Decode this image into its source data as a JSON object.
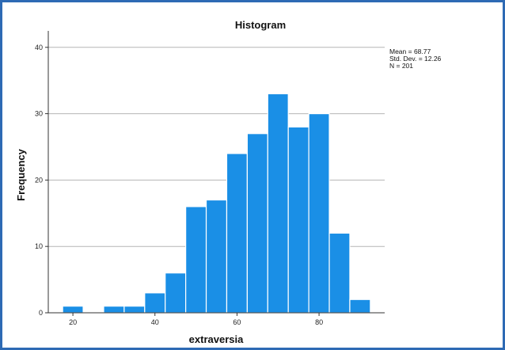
{
  "chart_data": {
    "type": "bar",
    "title": "Histogram",
    "xlabel": "extraversia",
    "ylabel": "Frequency",
    "bin_width": 5,
    "bins": [
      {
        "start": 17.5,
        "end": 22.5,
        "count": 1
      },
      {
        "start": 22.5,
        "end": 27.5,
        "count": 0
      },
      {
        "start": 27.5,
        "end": 32.5,
        "count": 1
      },
      {
        "start": 32.5,
        "end": 37.5,
        "count": 1
      },
      {
        "start": 37.5,
        "end": 42.5,
        "count": 3
      },
      {
        "start": 42.5,
        "end": 47.5,
        "count": 6
      },
      {
        "start": 47.5,
        "end": 52.5,
        "count": 16
      },
      {
        "start": 52.5,
        "end": 57.5,
        "count": 17
      },
      {
        "start": 57.5,
        "end": 62.5,
        "count": 24
      },
      {
        "start": 62.5,
        "end": 67.5,
        "count": 27
      },
      {
        "start": 67.5,
        "end": 72.5,
        "count": 33
      },
      {
        "start": 72.5,
        "end": 77.5,
        "count": 28
      },
      {
        "start": 77.5,
        "end": 82.5,
        "count": 30
      },
      {
        "start": 82.5,
        "end": 87.5,
        "count": 12
      },
      {
        "start": 87.5,
        "end": 92.5,
        "count": 2
      }
    ],
    "xlim": [
      14,
      96
    ],
    "ylim": [
      0,
      42
    ],
    "xticks": [
      20,
      40,
      60,
      80
    ],
    "yticks": [
      0,
      10,
      20,
      30,
      40
    ],
    "grid": "horizontal",
    "bar_color": "#1a8fe6",
    "stats": {
      "mean": "Mean = 68.77",
      "std": "Std. Dev. = 12.26",
      "n": "N = 201"
    }
  }
}
